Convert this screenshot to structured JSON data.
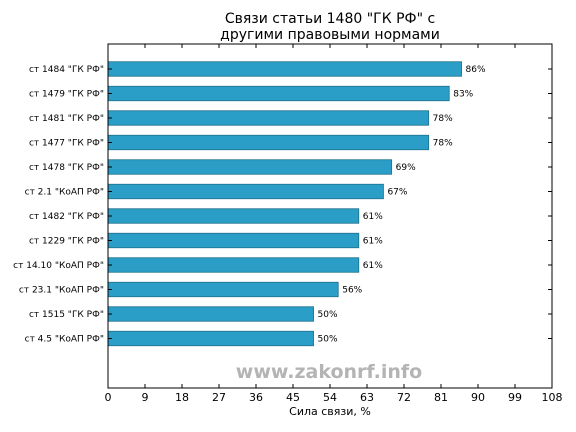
{
  "chart_data": {
    "type": "bar",
    "orientation": "horizontal",
    "title_lines": [
      "Связи статьи 1480 \"ГК РФ\" с",
      "другими правовыми нормами"
    ],
    "xlabel": "Сила связи, %",
    "ylabel": "",
    "xlim": [
      0,
      108
    ],
    "xticks": [
      0,
      9,
      18,
      27,
      36,
      45,
      54,
      63,
      72,
      81,
      90,
      99,
      108
    ],
    "grid": false,
    "categories": [
      "ст 1484 \"ГК РФ\"",
      "ст 1479 \"ГК РФ\"",
      "ст 1481 \"ГК РФ\"",
      "ст 1477 \"ГК РФ\"",
      "ст 1478 \"ГК РФ\"",
      "ст 2.1 \"КоАП РФ\"",
      "ст 1482 \"ГК РФ\"",
      "ст 1229 \"ГК РФ\"",
      "ст 14.10 \"КоАП РФ\"",
      "ст 23.1 \"КоАП РФ\"",
      "ст 1515 \"ГК РФ\"",
      "ст 4.5 \"КоАП РФ\""
    ],
    "values": [
      86,
      83,
      78,
      78,
      69,
      67,
      61,
      61,
      61,
      56,
      50,
      50
    ],
    "value_labels": [
      "86%",
      "83%",
      "78%",
      "78%",
      "69%",
      "67%",
      "61%",
      "61%",
      "61%",
      "56%",
      "50%",
      "50%"
    ],
    "bar_color": "#2a9ec6",
    "bar_edge_color": "#1d6f8c",
    "watermark": "www.zakonrf.info",
    "watermark_color": "#b4b4b4"
  }
}
